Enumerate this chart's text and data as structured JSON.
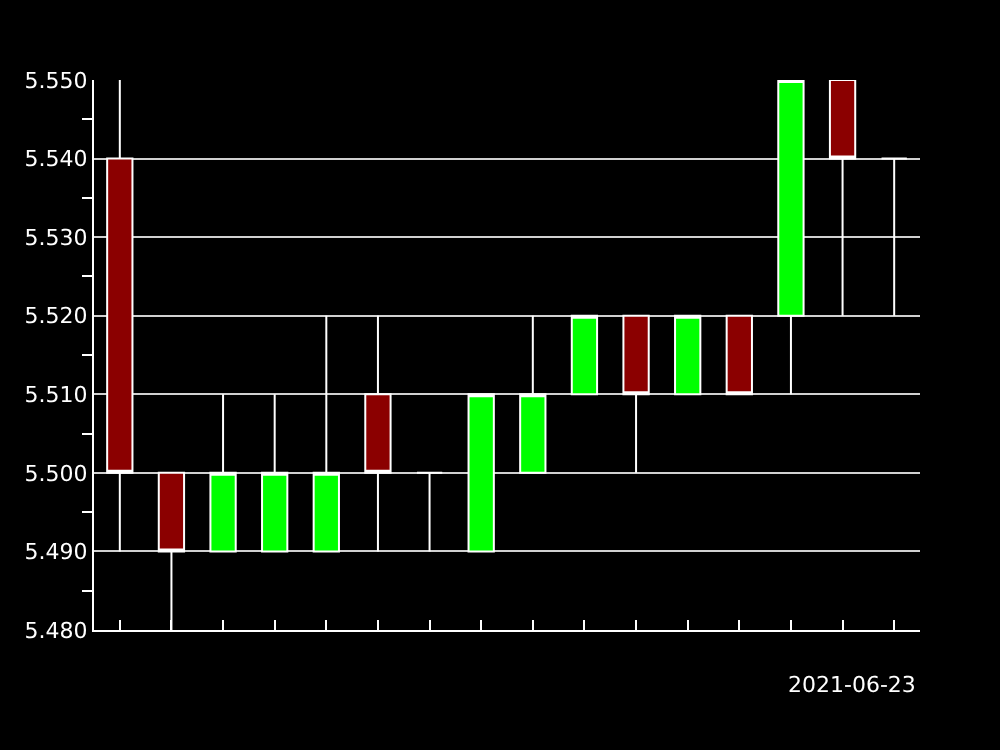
{
  "chart_data": {
    "type": "candlestick",
    "xlabel": "2021-06-23",
    "categories": [
      null,
      null,
      null,
      null,
      null,
      null,
      null,
      null,
      null,
      null,
      null,
      null,
      null,
      null,
      null,
      null
    ],
    "ohlc": [
      [
        5.54,
        5.55,
        5.49,
        5.5
      ],
      [
        5.5,
        5.5,
        5.48,
        5.49
      ],
      [
        5.49,
        5.51,
        5.49,
        5.5
      ],
      [
        5.49,
        5.51,
        5.49,
        5.5
      ],
      [
        5.49,
        5.52,
        5.49,
        5.5
      ],
      [
        5.51,
        5.52,
        5.49,
        5.5
      ],
      [
        5.5,
        5.5,
        5.49,
        5.5
      ],
      [
        5.49,
        5.51,
        5.49,
        5.51
      ],
      [
        5.5,
        5.52,
        5.5,
        5.51
      ],
      [
        5.51,
        5.52,
        5.51,
        5.52
      ],
      [
        5.52,
        5.52,
        5.5,
        5.51
      ],
      [
        5.51,
        5.52,
        5.51,
        5.52
      ],
      [
        5.52,
        5.52,
        5.51,
        5.51
      ],
      [
        5.52,
        5.55,
        5.51,
        5.55
      ],
      [
        5.55,
        5.55,
        5.52,
        5.54
      ],
      [
        5.54,
        5.54,
        5.52,
        5.54
      ]
    ],
    "colors": [
      "#8b0000",
      "#8b0000",
      "#00ff00",
      "#00ff00",
      "#00ff00",
      "#8b0000",
      "#ffffff",
      "#00ff00",
      "#00ff00",
      "#00ff00",
      "#8b0000",
      "#00ff00",
      "#8b0000",
      "#00ff00",
      "#8b0000",
      "#ffffff"
    ],
    "ylim": [
      5.48,
      5.55
    ],
    "yticks": [
      {
        "value": 5.48,
        "label": "5.480"
      },
      {
        "value": 5.485,
        "label": null
      },
      {
        "value": 5.49,
        "label": "5.490"
      },
      {
        "value": 5.495,
        "label": null
      },
      {
        "value": 5.5,
        "label": "5.500"
      },
      {
        "value": 5.505,
        "label": null
      },
      {
        "value": 5.51,
        "label": "5.510"
      },
      {
        "value": 5.515,
        "label": null
      },
      {
        "value": 5.52,
        "label": "5.520"
      },
      {
        "value": 5.525,
        "label": null
      },
      {
        "value": 5.53,
        "label": "5.530"
      },
      {
        "value": 5.535,
        "label": null
      },
      {
        "value": 5.54,
        "label": "5.540"
      },
      {
        "value": 5.545,
        "label": null
      },
      {
        "value": 5.55,
        "label": "5.550"
      }
    ],
    "grid": "y",
    "tick_labels": "y"
  }
}
